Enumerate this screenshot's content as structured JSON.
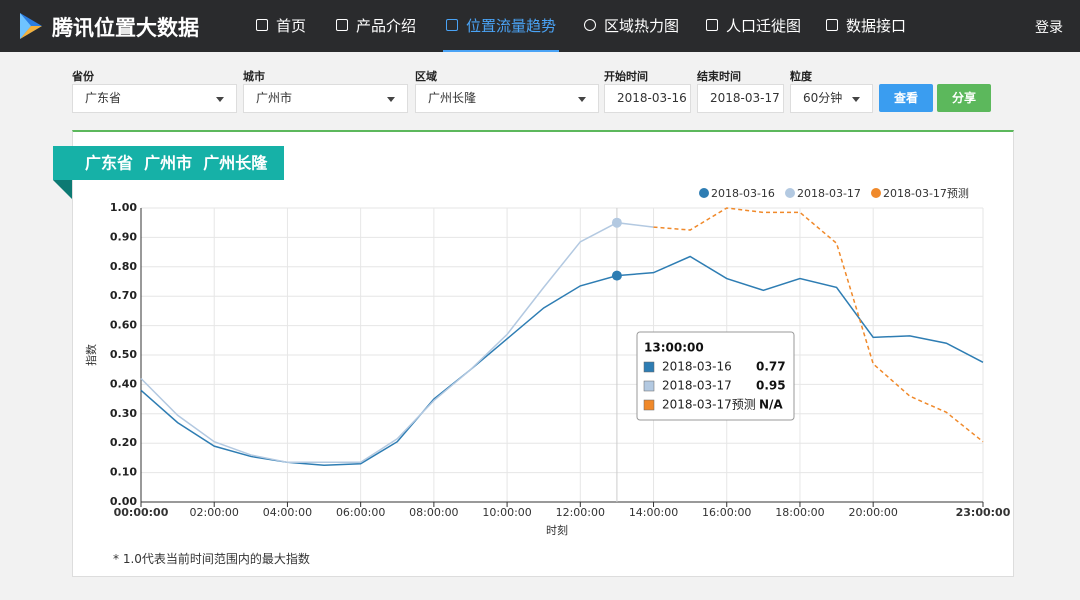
{
  "header": {
    "brand": "腾讯位置大数据",
    "nav": [
      "首页",
      "产品介绍",
      "位置流量趋势",
      "区域热力图",
      "人口迁徙图",
      "数据接口"
    ],
    "login": "登录"
  },
  "filters": [
    {
      "label": "省份",
      "value": "广东省"
    },
    {
      "label": "城市",
      "value": "广州市"
    },
    {
      "label": "区域",
      "value": "广州长隆"
    },
    {
      "label": "开始时间",
      "value": "2018-03-16"
    },
    {
      "label": "结束时间",
      "value": "2018-03-17"
    },
    {
      "label": "粒度",
      "value": "60分钟"
    }
  ],
  "buttons": [
    "查看",
    "分享"
  ],
  "panel_title": "广东省  广州市  广州长隆",
  "footnote": "*  1.0代表当前时间范围内的最大指数",
  "chart_data": {
    "type": "line",
    "x_label": "时刻",
    "y_label": "指数",
    "categories": [
      "00:00:00",
      null,
      "02:00:00",
      null,
      "04:00:00",
      null,
      "06:00:00",
      null,
      "08:00:00",
      null,
      "10:00:00",
      null,
      "12:00:00",
      null,
      "14:00:00",
      null,
      "16:00:00",
      null,
      "18:00:00",
      null,
      "20:00:00",
      null,
      null,
      "23:00:00"
    ],
    "ylim": [
      0,
      1
    ],
    "yticks": [
      {
        "value": 0,
        "label": "0.00"
      },
      {
        "value": 0.1,
        "label": "0.10"
      },
      {
        "value": 0.2,
        "label": "0.20"
      },
      {
        "value": 0.3,
        "label": "0.30"
      },
      {
        "value": 0.4,
        "label": "0.40"
      },
      {
        "value": 0.5,
        "label": "0.50"
      },
      {
        "value": 0.6,
        "label": "0.60"
      },
      {
        "value": 0.7,
        "label": "0.70"
      },
      {
        "value": 0.8,
        "label": "0.80"
      },
      {
        "value": 0.9,
        "label": "0.90"
      },
      {
        "value": 1,
        "label": "1.00"
      }
    ],
    "grid": true,
    "legend": "top-right",
    "series": [
      {
        "name": "2018-03-16",
        "color": "#2e7db3",
        "dashed": false,
        "values": [
          0.38,
          0.27,
          0.19,
          0.155,
          0.135,
          0.125,
          0.13,
          0.205,
          0.35,
          0.45,
          0.555,
          0.66,
          0.735,
          0.77,
          0.78,
          0.835,
          0.76,
          0.72,
          0.76,
          0.73,
          0.56,
          0.565,
          0.54,
          0.475
        ]
      },
      {
        "name": "2018-03-17",
        "color": "#b3c9e1",
        "dashed": false,
        "values": [
          0.42,
          0.295,
          0.205,
          0.16,
          0.135,
          0.135,
          0.135,
          0.215,
          0.345,
          0.45,
          0.57,
          0.73,
          0.885,
          0.95,
          0.935,
          null,
          null,
          null,
          null,
          null,
          null,
          null,
          null,
          null
        ]
      },
      {
        "name": "2018-03-17预测",
        "color": "#f0892a",
        "dashed": true,
        "values": [
          null,
          null,
          null,
          null,
          null,
          null,
          null,
          null,
          null,
          null,
          null,
          null,
          null,
          null,
          0.935,
          0.925,
          1.0,
          0.985,
          0.985,
          0.88,
          0.47,
          0.36,
          0.305,
          0.205
        ]
      }
    ],
    "tooltip": {
      "title": "13:00:00",
      "index": 13,
      "missing": "N/A"
    }
  }
}
